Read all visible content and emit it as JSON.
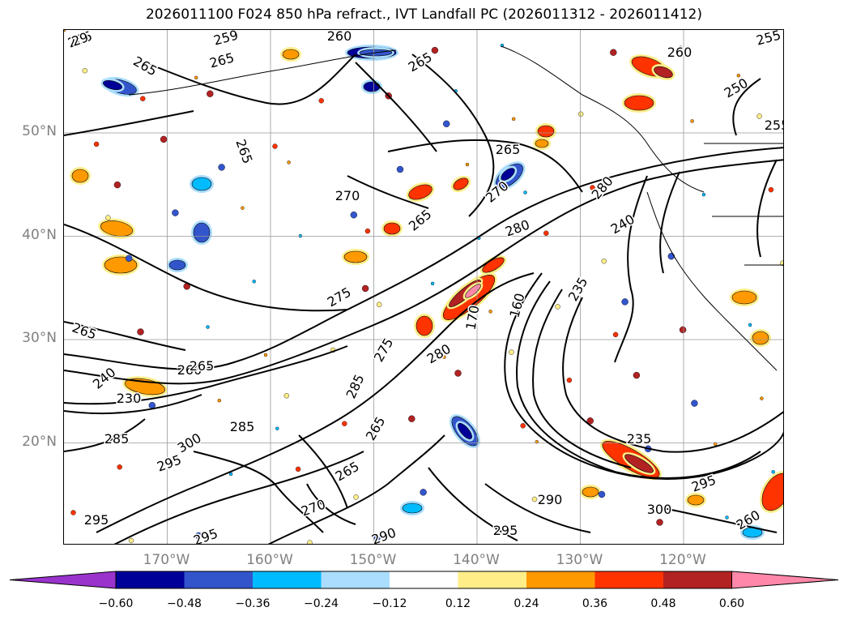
{
  "title": "2026011100 F024 850 hPa refract., IVT Landfall PC (2026011312 - 2026011412)",
  "lat_labels": [
    {
      "value": 50,
      "text": "50°N"
    },
    {
      "value": 40,
      "text": "40°N"
    },
    {
      "value": 30,
      "text": "30°N"
    },
    {
      "value": 20,
      "text": "20°N"
    }
  ],
  "lon_labels": [
    {
      "value": -170,
      "text": "170°W"
    },
    {
      "value": -160,
      "text": "160°W"
    },
    {
      "value": -150,
      "text": "150°W"
    },
    {
      "value": -140,
      "text": "140°W"
    },
    {
      "value": -130,
      "text": "130°W"
    },
    {
      "value": -120,
      "text": "120°W"
    }
  ],
  "colorbar": {
    "bins": [
      {
        "color": "#9933cc"
      },
      {
        "color": "#000099"
      },
      {
        "color": "#3355cc"
      },
      {
        "color": "#00bbff"
      },
      {
        "color": "#aaddff"
      },
      {
        "color": "#ffffff"
      },
      {
        "color": "#ffee88"
      },
      {
        "color": "#ff9900"
      },
      {
        "color": "#ff3300"
      },
      {
        "color": "#b22222"
      },
      {
        "color": "#ff88aa"
      }
    ],
    "ticks": [
      "−0.60",
      "−0.48",
      "−0.36",
      "−0.24",
      "−0.12",
      "0.12",
      "0.24",
      "0.36",
      "0.48",
      "0.60"
    ]
  },
  "contour_labels": [
    "265",
    "259",
    "260",
    "265",
    "265",
    "255",
    "250",
    "255",
    "260",
    "265",
    "270",
    "270",
    "265",
    "280",
    "280",
    "240",
    "265",
    "275",
    "235",
    "265",
    "265",
    "240",
    "260",
    "265",
    "230",
    "280",
    "170",
    "160",
    "285",
    "275",
    "285",
    "285",
    "300",
    "295",
    "265",
    "265",
    "290",
    "270",
    "235",
    "295",
    "290",
    "300",
    "295",
    "295",
    "295",
    "260",
    "29"
  ]
}
